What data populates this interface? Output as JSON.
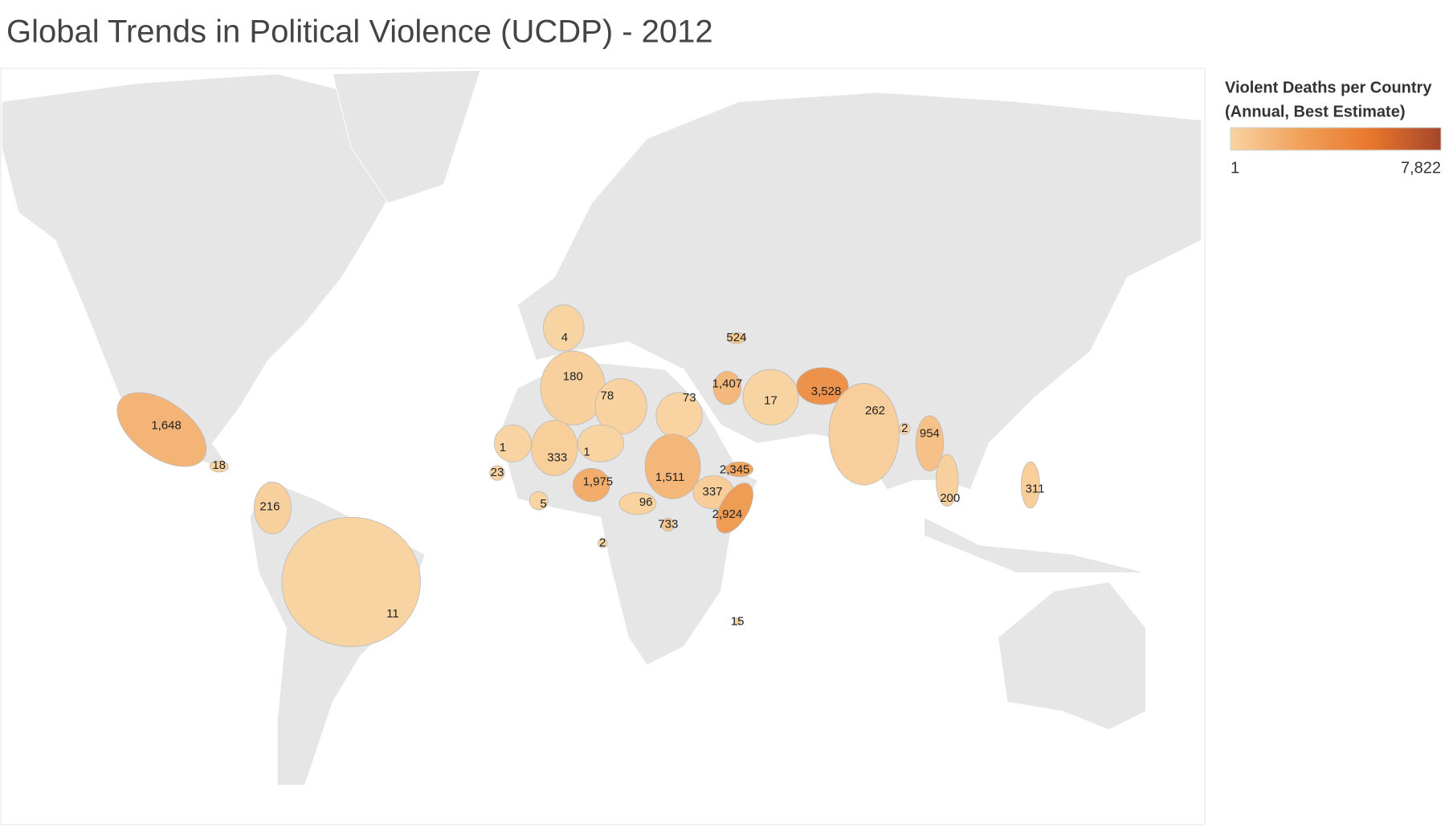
{
  "chart_data": {
    "type": "choropleth",
    "title": "Global Trends in Political Violence (UCDP) - 2012",
    "legend_title": [
      "Violent Deaths per Country",
      "(Annual, Best Estimate)"
    ],
    "legend_range": [
      {
        "value": 1,
        "label": "1"
      },
      {
        "value": 7822,
        "label": "7,822"
      }
    ],
    "colors": [
      "#f9d4a3",
      "#f0a15a",
      "#e8772c",
      "#a5462b"
    ],
    "values": [
      4,
      524,
      180,
      1407,
      78,
      73,
      17,
      3528,
      1648,
      262,
      2,
      954,
      18,
      1,
      333,
      1,
      23,
      1975,
      1511,
      2345,
      311,
      337,
      216,
      5,
      96,
      200,
      2924,
      733,
      2,
      11,
      15
    ],
    "value_labels": [
      "4",
      "524",
      "180",
      "1,407",
      "78",
      "73",
      "17",
      "3,528",
      "1,648",
      "262",
      "2",
      "954",
      "18",
      "1",
      "333",
      "1",
      "23",
      "1,975",
      "1,511",
      "2,345",
      "311",
      "337",
      "216",
      "5",
      "96",
      "200",
      "2,924",
      "733",
      "2",
      "11",
      "15"
    ]
  }
}
